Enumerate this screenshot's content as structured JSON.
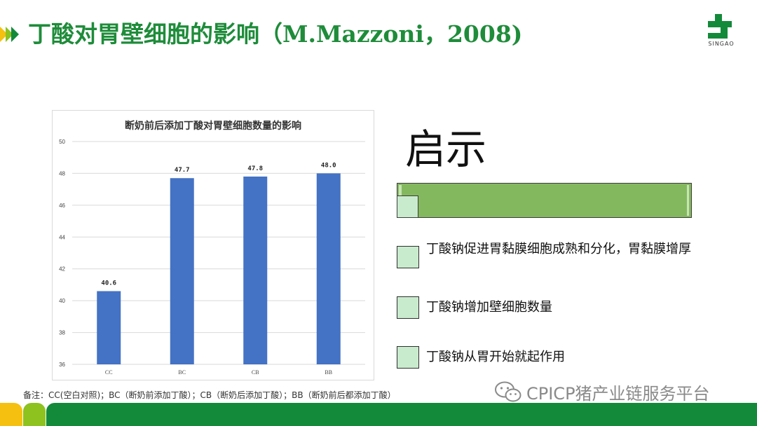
{
  "slide": {
    "title": "丁酸对胃壁细胞的影响（M.Mazzoni，2008)",
    "logo_text": "SINGAO",
    "logo_icon": "singao-cross-logo-icon",
    "arrow_icon": "double-chevron-right-icon"
  },
  "note": "备注：CC(空白对照)；BC（断奶前添加丁酸）；CB（断奶后添加丁酸）；BB（断奶前后都添加丁酸）",
  "insights": {
    "heading": "启示",
    "items": [
      "丁酸钠促进胃黏膜细胞成熟和分化，胃黏膜增厚",
      "丁酸钠增加壁细胞数量",
      "丁酸钠从胃开始就起作用"
    ]
  },
  "watermark": {
    "text": "CPICP猪产业链服务平台",
    "icon": "wechat-icon"
  },
  "colors": {
    "title_green": "#1e8c3a",
    "bar_blue": "#4472c4",
    "banner_green": "#84b85e",
    "bullet_fill": "#c9ebcd",
    "footer_yellow": "#f5c00f",
    "footer_lime": "#8dc21f",
    "footer_green": "#138a3a"
  },
  "chart_data": {
    "type": "bar",
    "title": "断奶前后添加丁酸对胃壁细胞数量的影响",
    "categories": [
      "CC",
      "BC",
      "CB",
      "BB"
    ],
    "values": [
      40.6,
      47.7,
      47.8,
      48.0
    ],
    "value_labels": [
      "40.6",
      "47.7",
      "47.8",
      "48.0"
    ],
    "yticks": [
      "36",
      "38",
      "40",
      "42",
      "44",
      "46",
      "48",
      "50"
    ],
    "ylim": [
      36,
      50
    ],
    "grid": true,
    "legend": "none",
    "xlabel": "",
    "ylabel": ""
  }
}
